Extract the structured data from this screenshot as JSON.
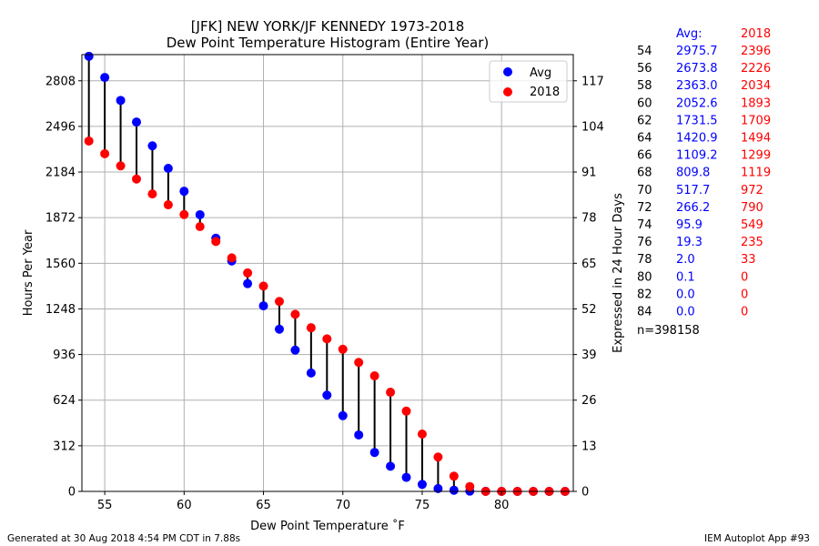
{
  "chart_data": {
    "type": "scatter",
    "title": "[JFK] NEW YORK/JF KENNEDY 1973-2018",
    "subtitle": "Dew Point Temperature Histogram (Entire Year)",
    "xlabel": "Dew Point Temperature $^\\circ$F",
    "xlabel_display": "Dew Point Temperature ˚F",
    "ylabel": "Hours Per Year",
    "ylabel_right": "Expressed in 24 Hour Days",
    "xlim": [
      53.56,
      84.52
    ],
    "ylim": [
      0,
      2987
    ],
    "x_ticks": [
      55,
      60,
      65,
      70,
      75,
      80
    ],
    "y_ticks": [
      0,
      312,
      624,
      936,
      1248,
      1560,
      1872,
      2184,
      2496,
      2808
    ],
    "y_ticks_right": [
      0,
      13,
      26,
      39,
      52,
      65,
      78,
      91,
      104,
      117
    ],
    "grid": true,
    "legend_position": "top-right",
    "x": [
      54,
      55,
      56,
      57,
      58,
      59,
      60,
      61,
      62,
      63,
      64,
      65,
      66,
      67,
      68,
      69,
      70,
      71,
      72,
      73,
      74,
      75,
      76,
      77,
      78,
      79,
      80,
      81,
      82,
      83,
      84
    ],
    "series": [
      {
        "name": "Avg",
        "color": "#0000ff",
        "values": [
          2975.7,
          2831,
          2673.8,
          2526,
          2363.0,
          2209,
          2052.6,
          1892,
          1731.5,
          1576,
          1420.9,
          1269,
          1109.2,
          966,
          809.8,
          658,
          517.7,
          386,
          266.2,
          172,
          95.9,
          48,
          19.3,
          8,
          2.0,
          0.5,
          0.1,
          0.0,
          0.0,
          0.0,
          0.0
        ]
      },
      {
        "name": "2018",
        "color": "#ff0000",
        "values": [
          2396,
          2309,
          2226,
          2136,
          2034,
          1960,
          1893,
          1811,
          1709,
          1597,
          1494,
          1404,
          1299,
          1211,
          1119,
          1043,
          972,
          882,
          790,
          678,
          549,
          392,
          235,
          104,
          33,
          0,
          0,
          0,
          0,
          0,
          0
        ]
      }
    ],
    "stem_color": "#000000"
  },
  "table": {
    "header_avg": "Avg:",
    "header_year": "2018",
    "rows": [
      {
        "t": "54",
        "avg": "2975.7",
        "yr": "2396"
      },
      {
        "t": "56",
        "avg": "2673.8",
        "yr": "2226"
      },
      {
        "t": "58",
        "avg": "2363.0",
        "yr": "2034"
      },
      {
        "t": "60",
        "avg": "2052.6",
        "yr": "1893"
      },
      {
        "t": "62",
        "avg": "1731.5",
        "yr": "1709"
      },
      {
        "t": "64",
        "avg": "1420.9",
        "yr": "1494"
      },
      {
        "t": "66",
        "avg": "1109.2",
        "yr": "1299"
      },
      {
        "t": "68",
        "avg": "809.8",
        "yr": "1119"
      },
      {
        "t": "70",
        "avg": "517.7",
        "yr": "972"
      },
      {
        "t": "72",
        "avg": "266.2",
        "yr": "790"
      },
      {
        "t": "74",
        "avg": "95.9",
        "yr": "549"
      },
      {
        "t": "76",
        "avg": "19.3",
        "yr": "235"
      },
      {
        "t": "78",
        "avg": "2.0",
        "yr": "33"
      },
      {
        "t": "80",
        "avg": "0.1",
        "yr": "0"
      },
      {
        "t": "82",
        "avg": "0.0",
        "yr": "0"
      },
      {
        "t": "84",
        "avg": "0.0",
        "yr": "0"
      }
    ],
    "count": "n=398158"
  },
  "footer": {
    "generated": "Generated at 30 Aug 2018 4:54 PM CDT in 7.88s",
    "app": "IEM Autoplot App #93"
  }
}
